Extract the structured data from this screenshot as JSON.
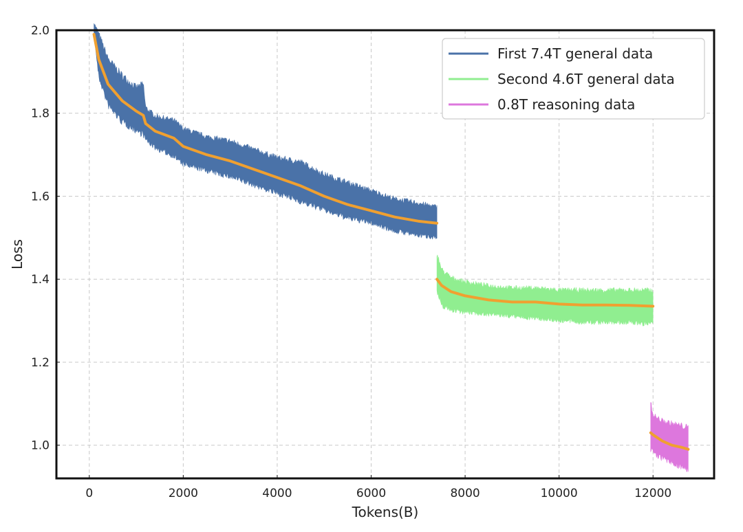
{
  "chart_data": {
    "type": "line",
    "xlabel": "Tokens(B)",
    "ylabel": "Loss",
    "xlim": [
      -700,
      13300
    ],
    "ylim": [
      0.92,
      2.0
    ],
    "x_ticks": [
      0,
      2000,
      4000,
      6000,
      8000,
      10000,
      12000
    ],
    "x_tick_labels": [
      "0",
      "2000",
      "4000",
      "6000",
      "8000",
      "10000",
      "12000"
    ],
    "y_ticks": [
      1.0,
      1.2,
      1.4,
      1.6,
      1.8,
      2.0
    ],
    "y_tick_labels": [
      "1.0",
      "1.2",
      "1.4",
      "1.6",
      "1.8",
      "2.0"
    ],
    "grid": true,
    "legend_position": "top-right",
    "series": [
      {
        "name": "First 7.4T general data",
        "color": "#4a72a8",
        "x": [
          100,
          200,
          400,
          700,
          1000,
          1150,
          1200,
          1400,
          1800,
          2000,
          2500,
          3000,
          3500,
          4000,
          4500,
          5000,
          5500,
          6000,
          6500,
          7000,
          7400
        ],
        "smoothed": [
          1.99,
          1.93,
          1.87,
          1.83,
          1.805,
          1.795,
          1.775,
          1.757,
          1.74,
          1.72,
          1.7,
          1.685,
          1.665,
          1.645,
          1.625,
          1.6,
          1.58,
          1.565,
          1.55,
          1.54,
          1.535
        ],
        "band_upper": [
          2.02,
          2.0,
          1.94,
          1.9,
          1.87,
          1.88,
          1.82,
          1.8,
          1.79,
          1.77,
          1.75,
          1.74,
          1.72,
          1.7,
          1.69,
          1.66,
          1.64,
          1.62,
          1.6,
          1.59,
          1.58
        ],
        "band_lower": [
          1.99,
          1.88,
          1.81,
          1.77,
          1.75,
          1.74,
          1.73,
          1.71,
          1.69,
          1.67,
          1.655,
          1.64,
          1.62,
          1.6,
          1.58,
          1.56,
          1.54,
          1.53,
          1.51,
          1.5,
          1.495
        ]
      },
      {
        "name": "Second 4.6T general data",
        "color": "#90ee90",
        "x": [
          7400,
          7500,
          7700,
          8000,
          8500,
          9000,
          9500,
          10000,
          10500,
          11000,
          11500,
          12000
        ],
        "smoothed": [
          1.4,
          1.385,
          1.37,
          1.36,
          1.35,
          1.345,
          1.345,
          1.34,
          1.338,
          1.338,
          1.337,
          1.335
        ],
        "band_upper": [
          1.47,
          1.43,
          1.41,
          1.4,
          1.39,
          1.385,
          1.385,
          1.38,
          1.38,
          1.38,
          1.38,
          1.38
        ],
        "band_lower": [
          1.36,
          1.33,
          1.32,
          1.315,
          1.31,
          1.305,
          1.3,
          1.295,
          1.29,
          1.29,
          1.29,
          1.285
        ]
      },
      {
        "name": "0.8T reasoning data",
        "color": "#dd77dd",
        "x": [
          11950,
          12000,
          12200,
          12400,
          12600,
          12750
        ],
        "smoothed": [
          1.03,
          1.025,
          1.01,
          1.0,
          0.995,
          0.99
        ],
        "band_upper": [
          1.11,
          1.08,
          1.065,
          1.06,
          1.055,
          1.05
        ],
        "band_lower": [
          0.98,
          0.975,
          0.96,
          0.95,
          0.94,
          0.935
        ]
      }
    ],
    "smoothed_color": "#f0a030"
  }
}
